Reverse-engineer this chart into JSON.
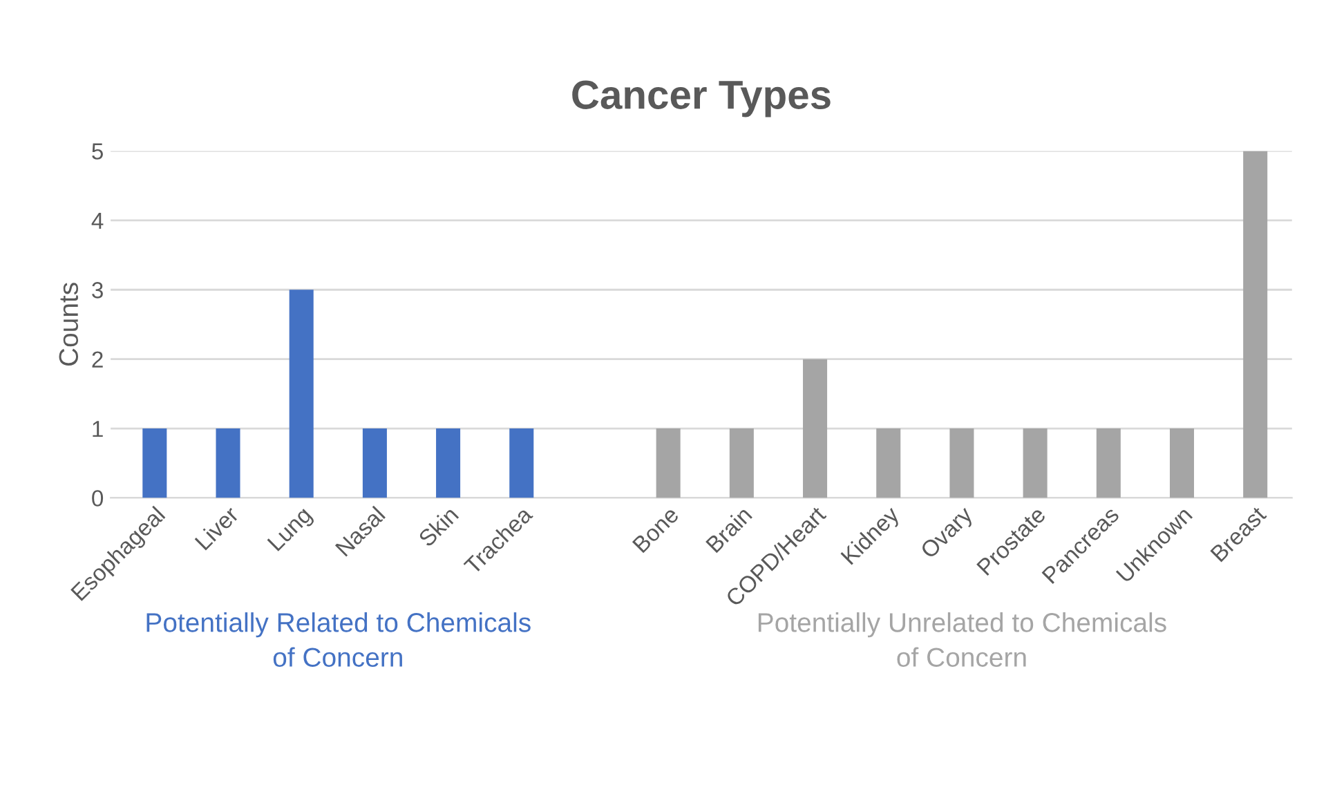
{
  "chart_data": {
    "type": "bar",
    "title": "Cancer Types",
    "ylabel": "Counts",
    "categories": [
      "Esophageal",
      "Liver",
      "Lung",
      "Nasal",
      "Skin",
      "Trachea",
      null,
      "Bone",
      "Brain",
      "COPD/Heart",
      "Kidney",
      "Ovary",
      "Prostate",
      "Pancreas",
      "Unknown",
      "Breast"
    ],
    "series": [
      {
        "name": "Potentially Related to Chemicals of Concern",
        "color": "#4472c4",
        "values": [
          1,
          1,
          3,
          1,
          1,
          1,
          null,
          null,
          null,
          null,
          null,
          null,
          null,
          null,
          null,
          null
        ]
      },
      {
        "name": "Potentially Unrelated to Chemicals of Concern",
        "color": "#a5a5a5",
        "values": [
          null,
          null,
          null,
          null,
          null,
          null,
          null,
          1,
          1,
          2,
          1,
          1,
          1,
          1,
          1,
          5
        ]
      }
    ],
    "ylim": [
      0,
      5
    ],
    "yticks": [
      0,
      1,
      2,
      3,
      4,
      5
    ],
    "grid": "y",
    "legend": false
  }
}
